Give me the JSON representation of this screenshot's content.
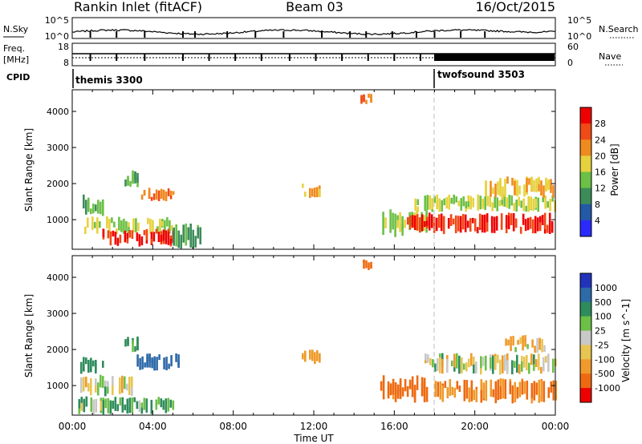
{
  "header": {
    "station": "Rankin Inlet (fitACF)",
    "beam": "Beam 03",
    "date": "16/Oct/2015"
  },
  "strips": {
    "noise": {
      "left_label": "N.Sky",
      "right_label": "N.Search",
      "left_ticks": [
        "10^5",
        "10^0"
      ],
      "right_ticks": [
        "10^5",
        "10^0"
      ]
    },
    "freq": {
      "left_label_1": "Freq.",
      "left_label_2": "[MHz]",
      "right_label": "Nave",
      "left_ticks": [
        "18",
        "8"
      ],
      "right_ticks": [
        "60",
        "0"
      ]
    },
    "cpid": {
      "label": "CPID",
      "programs": [
        {
          "name": "themis 3300",
          "start_hour": 0
        },
        {
          "name": "twofsound 3503",
          "start_hour": 18
        }
      ]
    }
  },
  "chart_data": [
    {
      "type": "heatmap",
      "title": "",
      "xlabel": "Time UT",
      "ylabel": "Slant Range [km]",
      "xlim": [
        0,
        24
      ],
      "ylim": [
        180,
        4600
      ],
      "xticks": [
        "00:00",
        "04:00",
        "08:00",
        "12:00",
        "16:00",
        "20:00",
        "00:00"
      ],
      "yticks": [
        1000,
        2000,
        3000,
        4000
      ],
      "colorbar": {
        "label": "Power [dB]",
        "ticks": [
          "4",
          "8",
          "12",
          "16",
          "20",
          "24",
          "28"
        ],
        "colors": [
          "#2a2aff",
          "#2459a8",
          "#3c8c5a",
          "#6cc046",
          "#e6d23c",
          "#f08a1e",
          "#f04a16",
          "#ee0000"
        ]
      },
      "regions": [
        {
          "t0": 0.4,
          "t1": 1.5,
          "r0": 1100,
          "r1": 1700,
          "value": 12
        },
        {
          "t0": 0.6,
          "t1": 5.0,
          "r0": 600,
          "r1": 1100,
          "value": 16
        },
        {
          "t0": 1.5,
          "t1": 5.0,
          "r0": 250,
          "r1": 750,
          "value": 28
        },
        {
          "t0": 3.3,
          "t1": 5.0,
          "r0": 1500,
          "r1": 1900,
          "value": 24
        },
        {
          "t0": 2.6,
          "t1": 3.2,
          "r0": 1900,
          "r1": 2400,
          "value": 12
        },
        {
          "t0": 5.0,
          "t1": 6.5,
          "r0": 180,
          "r1": 900,
          "value": 12
        },
        {
          "t0": 11.4,
          "t1": 12.3,
          "r0": 1600,
          "r1": 2000,
          "value": 20
        },
        {
          "t0": 14.2,
          "t1": 14.8,
          "r0": 4200,
          "r1": 4500,
          "value": 24
        },
        {
          "t0": 15.4,
          "t1": 17.6,
          "r0": 500,
          "r1": 1300,
          "value": 16
        },
        {
          "t0": 16.5,
          "t1": 24.0,
          "r0": 600,
          "r1": 1200,
          "value": 28
        },
        {
          "t0": 17.0,
          "t1": 24.0,
          "r0": 1200,
          "r1": 1700,
          "value": 16
        },
        {
          "t0": 20.5,
          "t1": 24.0,
          "r0": 1600,
          "r1": 2200,
          "value": 20
        }
      ]
    },
    {
      "type": "heatmap",
      "title": "",
      "xlabel": "Time UT",
      "ylabel": "Slant Range [km]",
      "xlim": [
        0,
        24
      ],
      "ylim": [
        180,
        4600
      ],
      "xticks": [
        "00:00",
        "04:00",
        "08:00",
        "12:00",
        "16:00",
        "20:00",
        "00:00"
      ],
      "yticks": [
        1000,
        2000,
        3000,
        4000
      ],
      "colorbar": {
        "label": "Velocity [m s^-1]",
        "ticks": [
          "1000",
          "500",
          "100",
          "25",
          "-25",
          "-100",
          "-500",
          "-1000"
        ],
        "colors": [
          "#2233bb",
          "#2d6aa8",
          "#2e8c5c",
          "#6cc046",
          "#c8c8c8",
          "#e8c452",
          "#ef9a2a",
          "#ee6a12",
          "#ee0000"
        ]
      },
      "regions": [
        {
          "t0": 0.3,
          "t1": 5.0,
          "r0": 200,
          "r1": 700,
          "value": 100
        },
        {
          "t0": 0.4,
          "t1": 3.0,
          "r0": 700,
          "r1": 1300,
          "value": 0
        },
        {
          "t0": 0.4,
          "t1": 1.5,
          "r0": 1300,
          "r1": 1800,
          "value": 300
        },
        {
          "t0": 3.2,
          "t1": 5.3,
          "r0": 1400,
          "r1": 1900,
          "value": 800
        },
        {
          "t0": 2.6,
          "t1": 3.2,
          "r0": 1900,
          "r1": 2400,
          "value": 200
        },
        {
          "t0": 11.4,
          "t1": 12.3,
          "r0": 1600,
          "r1": 2000,
          "value": -300
        },
        {
          "t0": 14.2,
          "t1": 14.8,
          "r0": 4200,
          "r1": 4500,
          "value": -700
        },
        {
          "t0": 15.3,
          "t1": 17.8,
          "r0": 500,
          "r1": 1300,
          "value": -600
        },
        {
          "t0": 17.5,
          "t1": 24.0,
          "r0": 1300,
          "r1": 1900,
          "value": 0
        },
        {
          "t0": 18.0,
          "t1": 24.0,
          "r0": 500,
          "r1": 1200,
          "value": -500
        },
        {
          "t0": 21.5,
          "t1": 23.5,
          "r0": 1900,
          "r1": 2400,
          "value": -100
        }
      ]
    }
  ]
}
